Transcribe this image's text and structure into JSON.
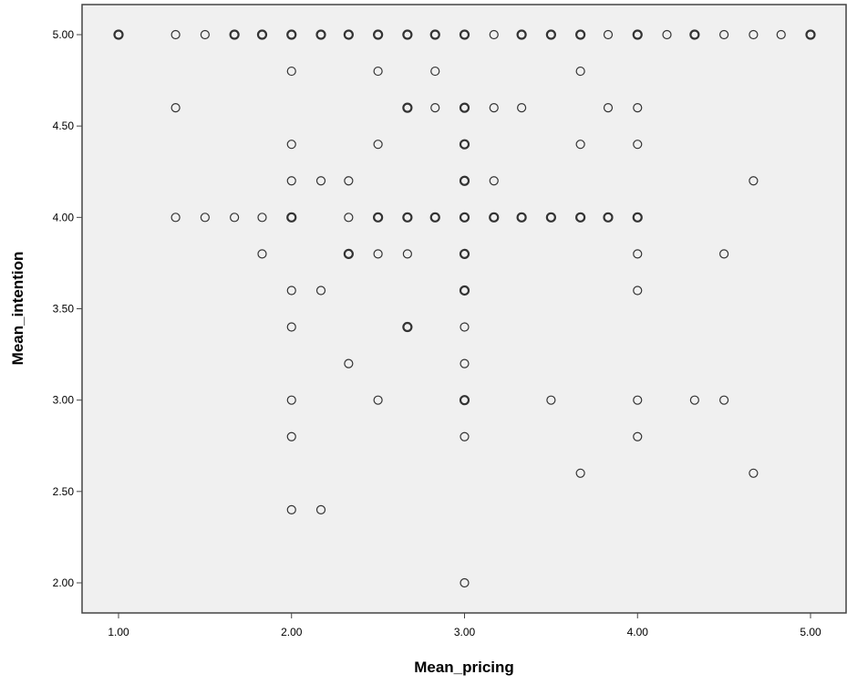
{
  "chart_data": {
    "type": "scatter",
    "title": "",
    "xlabel": "Mean_pricing",
    "ylabel": "Mean_intention",
    "xlim": [
      0.8,
      5.2
    ],
    "ylim": [
      1.84,
      5.17
    ],
    "x_ticks": [
      1.0,
      2.0,
      3.0,
      4.0,
      5.0
    ],
    "y_ticks": [
      2.0,
      2.5,
      3.0,
      3.5,
      4.0,
      4.5,
      5.0
    ],
    "x_tick_labels": [
      "1.00",
      "2.00",
      "3.00",
      "4.00",
      "5.00"
    ],
    "y_tick_labels": [
      "2.00",
      "2.50",
      "3.00",
      "3.50",
      "4.00",
      "4.50",
      "5.00"
    ],
    "grid": false,
    "marker": "open-circle",
    "plot_background": "#f0f0f0",
    "marker_color": "#333333",
    "points": [
      {
        "x": 1.0,
        "y": 5.0,
        "bold": true
      },
      {
        "x": 1.33,
        "y": 5.0,
        "bold": false
      },
      {
        "x": 1.5,
        "y": 5.0,
        "bold": false
      },
      {
        "x": 1.67,
        "y": 5.0,
        "bold": true
      },
      {
        "x": 1.83,
        "y": 5.0,
        "bold": true
      },
      {
        "x": 2.0,
        "y": 5.0,
        "bold": true
      },
      {
        "x": 2.17,
        "y": 5.0,
        "bold": true
      },
      {
        "x": 2.33,
        "y": 5.0,
        "bold": true
      },
      {
        "x": 2.5,
        "y": 5.0,
        "bold": true
      },
      {
        "x": 2.67,
        "y": 5.0,
        "bold": true
      },
      {
        "x": 2.83,
        "y": 5.0,
        "bold": true
      },
      {
        "x": 3.0,
        "y": 5.0,
        "bold": true
      },
      {
        "x": 3.17,
        "y": 5.0,
        "bold": false
      },
      {
        "x": 3.33,
        "y": 5.0,
        "bold": true
      },
      {
        "x": 3.5,
        "y": 5.0,
        "bold": true
      },
      {
        "x": 3.67,
        "y": 5.0,
        "bold": true
      },
      {
        "x": 3.83,
        "y": 5.0,
        "bold": false
      },
      {
        "x": 4.0,
        "y": 5.0,
        "bold": true
      },
      {
        "x": 4.17,
        "y": 5.0,
        "bold": false
      },
      {
        "x": 4.33,
        "y": 5.0,
        "bold": true
      },
      {
        "x": 4.5,
        "y": 5.0,
        "bold": false
      },
      {
        "x": 4.67,
        "y": 5.0,
        "bold": false
      },
      {
        "x": 4.83,
        "y": 5.0,
        "bold": false
      },
      {
        "x": 5.0,
        "y": 5.0,
        "bold": true
      },
      {
        "x": 2.0,
        "y": 4.8,
        "bold": false
      },
      {
        "x": 2.5,
        "y": 4.8,
        "bold": false
      },
      {
        "x": 2.83,
        "y": 4.8,
        "bold": false
      },
      {
        "x": 3.67,
        "y": 4.8,
        "bold": false
      },
      {
        "x": 1.33,
        "y": 4.6,
        "bold": false
      },
      {
        "x": 2.67,
        "y": 4.6,
        "bold": true
      },
      {
        "x": 2.83,
        "y": 4.6,
        "bold": false
      },
      {
        "x": 3.0,
        "y": 4.6,
        "bold": true
      },
      {
        "x": 3.17,
        "y": 4.6,
        "bold": false
      },
      {
        "x": 3.33,
        "y": 4.6,
        "bold": false
      },
      {
        "x": 3.83,
        "y": 4.6,
        "bold": false
      },
      {
        "x": 4.0,
        "y": 4.6,
        "bold": false
      },
      {
        "x": 2.0,
        "y": 4.4,
        "bold": false
      },
      {
        "x": 2.5,
        "y": 4.4,
        "bold": false
      },
      {
        "x": 3.0,
        "y": 4.4,
        "bold": true
      },
      {
        "x": 3.67,
        "y": 4.4,
        "bold": false
      },
      {
        "x": 4.0,
        "y": 4.4,
        "bold": false
      },
      {
        "x": 2.0,
        "y": 4.2,
        "bold": false
      },
      {
        "x": 2.17,
        "y": 4.2,
        "bold": false
      },
      {
        "x": 2.33,
        "y": 4.2,
        "bold": false
      },
      {
        "x": 3.0,
        "y": 4.2,
        "bold": true
      },
      {
        "x": 3.17,
        "y": 4.2,
        "bold": false
      },
      {
        "x": 4.67,
        "y": 4.2,
        "bold": false
      },
      {
        "x": 1.33,
        "y": 4.0,
        "bold": false
      },
      {
        "x": 1.5,
        "y": 4.0,
        "bold": false
      },
      {
        "x": 1.67,
        "y": 4.0,
        "bold": false
      },
      {
        "x": 1.83,
        "y": 4.0,
        "bold": false
      },
      {
        "x": 2.0,
        "y": 4.0,
        "bold": true
      },
      {
        "x": 2.33,
        "y": 4.0,
        "bold": false
      },
      {
        "x": 2.5,
        "y": 4.0,
        "bold": true
      },
      {
        "x": 2.67,
        "y": 4.0,
        "bold": true
      },
      {
        "x": 2.83,
        "y": 4.0,
        "bold": true
      },
      {
        "x": 3.0,
        "y": 4.0,
        "bold": true
      },
      {
        "x": 3.17,
        "y": 4.0,
        "bold": true
      },
      {
        "x": 3.33,
        "y": 4.0,
        "bold": true
      },
      {
        "x": 3.5,
        "y": 4.0,
        "bold": true
      },
      {
        "x": 3.67,
        "y": 4.0,
        "bold": true
      },
      {
        "x": 3.83,
        "y": 4.0,
        "bold": true
      },
      {
        "x": 4.0,
        "y": 4.0,
        "bold": true
      },
      {
        "x": 1.83,
        "y": 3.8,
        "bold": false
      },
      {
        "x": 2.33,
        "y": 3.8,
        "bold": true
      },
      {
        "x": 2.5,
        "y": 3.8,
        "bold": false
      },
      {
        "x": 2.67,
        "y": 3.8,
        "bold": false
      },
      {
        "x": 3.0,
        "y": 3.8,
        "bold": true
      },
      {
        "x": 4.0,
        "y": 3.8,
        "bold": false
      },
      {
        "x": 4.5,
        "y": 3.8,
        "bold": false
      },
      {
        "x": 2.0,
        "y": 3.6,
        "bold": false
      },
      {
        "x": 2.17,
        "y": 3.6,
        "bold": false
      },
      {
        "x": 3.0,
        "y": 3.6,
        "bold": true
      },
      {
        "x": 4.0,
        "y": 3.6,
        "bold": false
      },
      {
        "x": 2.0,
        "y": 3.4,
        "bold": false
      },
      {
        "x": 2.67,
        "y": 3.4,
        "bold": true
      },
      {
        "x": 3.0,
        "y": 3.4,
        "bold": false
      },
      {
        "x": 2.33,
        "y": 3.2,
        "bold": false
      },
      {
        "x": 3.0,
        "y": 3.2,
        "bold": false
      },
      {
        "x": 2.0,
        "y": 3.0,
        "bold": false
      },
      {
        "x": 2.5,
        "y": 3.0,
        "bold": false
      },
      {
        "x": 3.0,
        "y": 3.0,
        "bold": true
      },
      {
        "x": 3.5,
        "y": 3.0,
        "bold": false
      },
      {
        "x": 4.0,
        "y": 3.0,
        "bold": false
      },
      {
        "x": 4.33,
        "y": 3.0,
        "bold": false
      },
      {
        "x": 4.5,
        "y": 3.0,
        "bold": false
      },
      {
        "x": 2.0,
        "y": 2.8,
        "bold": false
      },
      {
        "x": 3.0,
        "y": 2.8,
        "bold": false
      },
      {
        "x": 4.0,
        "y": 2.8,
        "bold": false
      },
      {
        "x": 3.67,
        "y": 2.6,
        "bold": false
      },
      {
        "x": 4.67,
        "y": 2.6,
        "bold": false
      },
      {
        "x": 2.0,
        "y": 2.4,
        "bold": false
      },
      {
        "x": 2.17,
        "y": 2.4,
        "bold": false
      },
      {
        "x": 3.0,
        "y": 2.0,
        "bold": false
      }
    ]
  }
}
